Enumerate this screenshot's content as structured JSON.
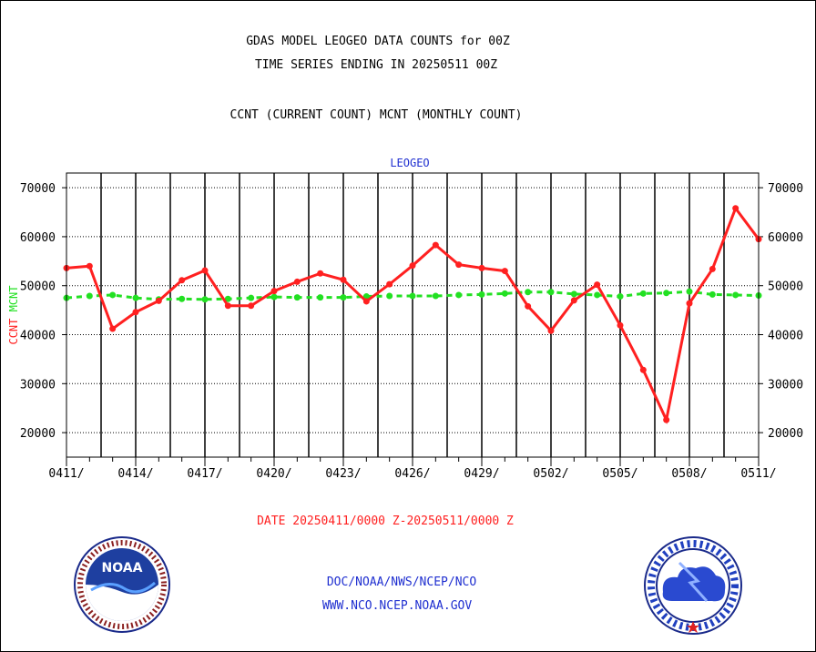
{
  "titles": {
    "line1": "GDAS MODEL LEOGEO DATA COUNTS for 00Z",
    "line2": "TIME SERIES ENDING IN 20250511 00Z",
    "line3": "CCNT (CURRENT COUNT) MCNT (MONTHLY COUNT)"
  },
  "date_range": "DATE 20250411/0000 Z-20250511/0000 Z",
  "footer": {
    "line1": "DOC/NOAA/NWS/NCEP/NCO",
    "line2": "WWW.NCO.NCEP.NOAA.GOV"
  },
  "logos": {
    "left": "NOAA",
    "right": "NATIONAL WEATHER SERVICE"
  },
  "colors": {
    "ccnt": "#ff2020",
    "mcnt": "#22e022",
    "axis": "#000000",
    "panel_label": "#1f2fd0"
  },
  "chart_data": {
    "type": "line",
    "title": "LEOGEO",
    "ylabel_ccnt": "CCNT",
    "ylabel_mcnt": "MCNT",
    "ylim": [
      15000,
      73000
    ],
    "yticks": [
      20000,
      30000,
      40000,
      50000,
      60000,
      70000
    ],
    "ytick_labels": [
      "20000",
      "30000",
      "40000",
      "50000",
      "60000",
      "70000"
    ],
    "xticks": [
      "0411/",
      "0414/",
      "0417/",
      "0420/",
      "0423/",
      "0426/",
      "0429/",
      "0502/",
      "0505/",
      "0508/",
      "0511/"
    ],
    "grid": true,
    "x": [
      "20250411",
      "20250412",
      "20250413",
      "20250414",
      "20250415",
      "20250416",
      "20250417",
      "20250418",
      "20250419",
      "20250420",
      "20250421",
      "20250422",
      "20250423",
      "20250424",
      "20250425",
      "20250426",
      "20250427",
      "20250428",
      "20250429",
      "20250430",
      "20250501",
      "20250502",
      "20250503",
      "20250504",
      "20250505",
      "20250506",
      "20250507",
      "20250508",
      "20250509",
      "20250510",
      "20250511"
    ],
    "series": [
      {
        "name": "CCNT",
        "style": "solid",
        "values": [
          53600,
          54000,
          41200,
          44600,
          46900,
          51100,
          53100,
          45900,
          45900,
          48900,
          50800,
          52500,
          51200,
          46800,
          50300,
          54100,
          58300,
          54300,
          53600,
          53000,
          45800,
          40800,
          47000,
          50200,
          41900,
          32800,
          22600,
          46400,
          53400,
          65800,
          59500
        ]
      },
      {
        "name": "MCNT",
        "style": "dashed",
        "values": [
          47500,
          47900,
          48100,
          47500,
          47200,
          47300,
          47200,
          47300,
          47500,
          47700,
          47600,
          47600,
          47600,
          47800,
          47900,
          47900,
          47900,
          48100,
          48200,
          48400,
          48700,
          48700,
          48300,
          48100,
          47800,
          48400,
          48500,
          48800,
          48200,
          48100,
          48000
        ]
      }
    ]
  }
}
